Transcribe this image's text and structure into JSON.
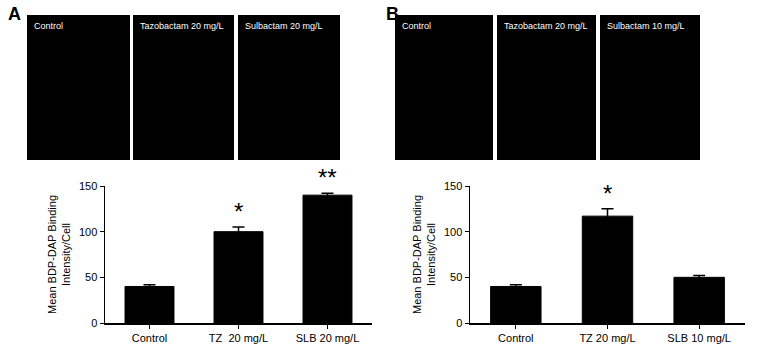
{
  "chart_data": [
    {
      "type": "bar",
      "panel_label": "A",
      "image_labels": [
        "Control",
        "Tazobactam 20 mg/L",
        "Sulbactam 20 mg/L"
      ],
      "ylabel": "Mean BDP-DAP Binding Intensity/Cell",
      "categories": [
        "Control",
        "TZ  20 mg/L",
        "SLB 20 mg/L"
      ],
      "values": [
        40,
        100,
        140
      ],
      "errors": [
        2,
        5,
        2
      ],
      "significance": [
        null,
        "*",
        "**"
      ],
      "color": "#000000",
      "ylim": [
        0,
        150
      ],
      "yticks": [
        0,
        50,
        100,
        150
      ],
      "grid": false
    },
    {
      "type": "bar",
      "panel_label": "B",
      "image_labels": [
        "Control",
        "Tazobactam 20 mg/L",
        "Sulbactam 10 mg/L"
      ],
      "ylabel": "Mean BDP-DAP Binding Intensity/Cell",
      "categories": [
        "Control",
        "TZ 20 mg/L",
        "SLB 10 mg/L"
      ],
      "values": [
        40,
        117,
        50
      ],
      "errors": [
        2,
        8,
        2
      ],
      "significance": [
        null,
        "*",
        null
      ],
      "color": "#000000",
      "ylim": [
        0,
        150
      ],
      "yticks": [
        0,
        50,
        100,
        150
      ],
      "grid": false
    }
  ]
}
